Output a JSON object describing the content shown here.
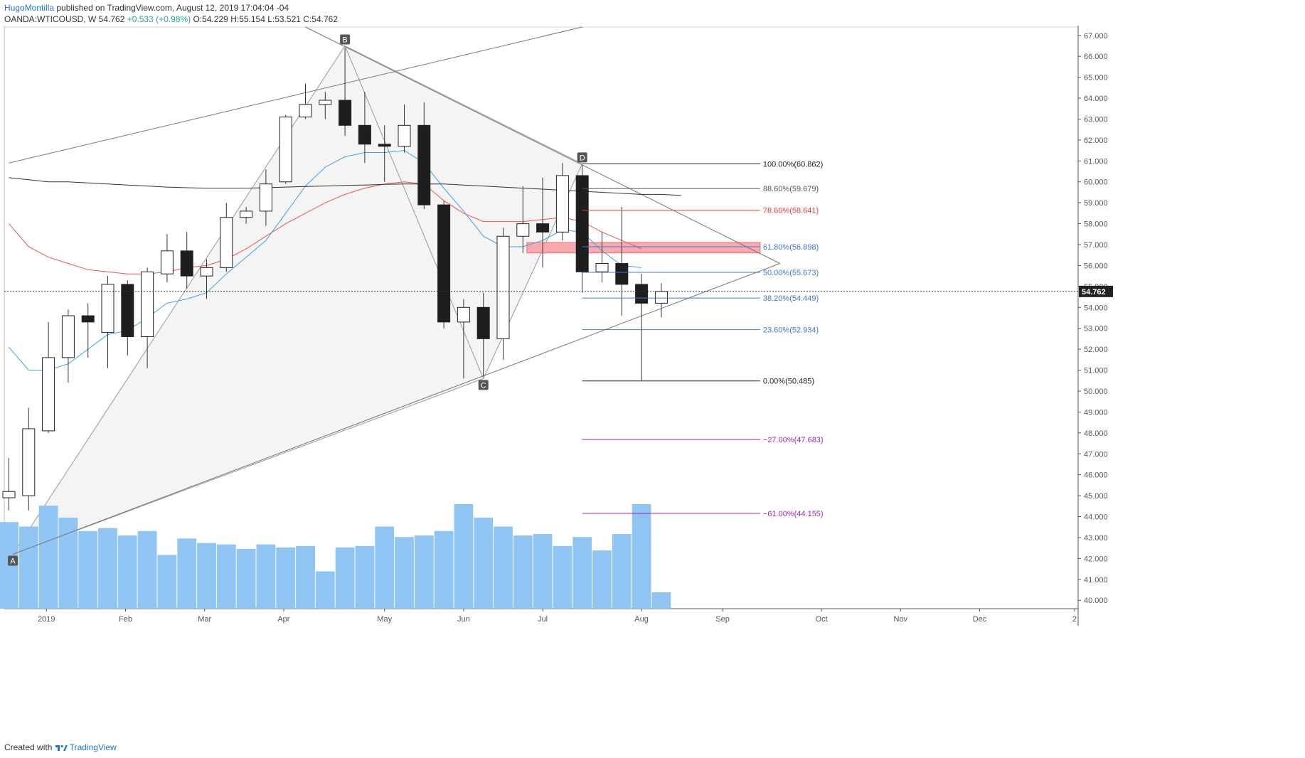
{
  "header": {
    "author": "HugoMontilla",
    "published_text": " published on TradingView.com, August 12, 2019 17:04:04 -04"
  },
  "symbol": {
    "name": "OANDA:WTICOUSD, W",
    "price": "54.762",
    "change": "+0.533 (+0.98%)",
    "open": "O:54.229",
    "high": "H:55.154",
    "low": "L:53.521",
    "close": "C:54.762"
  },
  "footer": {
    "created_with": "Created with",
    "brand": "TradingView"
  },
  "colors": {
    "bull_body": "#ffffff",
    "bear_body": "#1e1e1e",
    "wick": "#333333",
    "volume": "#90c4f3",
    "ma_blue": "#3da3e8",
    "ma_red": "#ef5350",
    "ma_black": "#333333",
    "fib_black": "#222222",
    "fib_gray": "#555555",
    "fib_red": "#e53935",
    "fib_blue": "#3c78d8",
    "fib_purple": "#9c27b0",
    "zone_fill": "#f7a1a6",
    "pattern_fill": "#f4f4f4"
  },
  "chart_data": {
    "type": "candlestick",
    "timeframe": "W",
    "ylim": [
      39.6,
      67.4
    ],
    "y_ticks": [
      "40.000",
      "41.000",
      "42.000",
      "43.000",
      "44.000",
      "45.000",
      "46.000",
      "47.000",
      "48.000",
      "49.000",
      "50.000",
      "51.000",
      "52.000",
      "53.000",
      "54.000",
      "55.000",
      "56.000",
      "57.000",
      "58.000",
      "59.000",
      "60.000",
      "61.000",
      "62.000",
      "63.000",
      "64.000",
      "65.000",
      "66.000",
      "67.000"
    ],
    "x_ticks": [
      {
        "label": "2019",
        "week": 1.9
      },
      {
        "label": "Feb",
        "week": 5.9
      },
      {
        "label": "Mar",
        "week": 9.9
      },
      {
        "label": "Apr",
        "week": 13.9
      },
      {
        "label": "May",
        "week": 19.0
      },
      {
        "label": "Jun",
        "week": 23.0
      },
      {
        "label": "Jul",
        "week": 27.0
      },
      {
        "label": "Aug",
        "week": 32.0
      },
      {
        "label": "Sep",
        "week": 36.1
      },
      {
        "label": "Oct",
        "week": 41.1
      },
      {
        "label": "Nov",
        "week": 45.1
      },
      {
        "label": "Dec",
        "week": 49.1
      },
      {
        "label": "2",
        "week": 53.9
      }
    ],
    "candles": [
      {
        "o": 44.9,
        "h": 46.8,
        "l": 44.3,
        "c": 45.2
      },
      {
        "o": 45.0,
        "h": 49.2,
        "l": 44.3,
        "c": 48.2
      },
      {
        "o": 48.1,
        "h": 53.3,
        "l": 48.0,
        "c": 51.6
      },
      {
        "o": 51.6,
        "h": 53.9,
        "l": 50.4,
        "c": 53.6
      },
      {
        "o": 53.6,
        "h": 54.2,
        "l": 51.6,
        "c": 53.3
      },
      {
        "o": 52.8,
        "h": 55.5,
        "l": 51.1,
        "c": 55.1
      },
      {
        "o": 55.1,
        "h": 55.3,
        "l": 51.7,
        "c": 52.6
      },
      {
        "o": 52.6,
        "h": 55.9,
        "l": 51.1,
        "c": 55.7
      },
      {
        "o": 55.6,
        "h": 57.5,
        "l": 55.2,
        "c": 56.7
      },
      {
        "o": 56.7,
        "h": 57.6,
        "l": 54.9,
        "c": 55.5
      },
      {
        "o": 55.5,
        "h": 56.3,
        "l": 54.4,
        "c": 55.9
      },
      {
        "o": 55.9,
        "h": 59.0,
        "l": 55.7,
        "c": 58.3
      },
      {
        "o": 58.3,
        "h": 58.8,
        "l": 58.0,
        "c": 58.6
      },
      {
        "o": 58.6,
        "h": 60.6,
        "l": 57.9,
        "c": 59.9
      },
      {
        "o": 60.0,
        "h": 63.2,
        "l": 59.9,
        "c": 63.1
      },
      {
        "o": 63.1,
        "h": 64.7,
        "l": 63.0,
        "c": 63.7
      },
      {
        "o": 63.7,
        "h": 64.3,
        "l": 63.0,
        "c": 63.9
      },
      {
        "o": 63.9,
        "h": 66.4,
        "l": 62.2,
        "c": 62.7
      },
      {
        "o": 62.7,
        "h": 64.3,
        "l": 60.9,
        "c": 61.8
      },
      {
        "o": 61.8,
        "h": 62.7,
        "l": 60.0,
        "c": 61.7
      },
      {
        "o": 61.7,
        "h": 63.7,
        "l": 61.4,
        "c": 62.7
      },
      {
        "o": 62.7,
        "h": 63.8,
        "l": 58.7,
        "c": 58.9
      },
      {
        "o": 58.9,
        "h": 59.1,
        "l": 53.0,
        "c": 53.3
      },
      {
        "o": 53.3,
        "h": 54.4,
        "l": 50.6,
        "c": 54.0
      },
      {
        "o": 54.0,
        "h": 54.7,
        "l": 50.7,
        "c": 52.5
      },
      {
        "o": 52.5,
        "h": 57.8,
        "l": 51.5,
        "c": 57.4
      },
      {
        "o": 57.4,
        "h": 59.8,
        "l": 56.6,
        "c": 58.0
      },
      {
        "o": 58.0,
        "h": 60.2,
        "l": 55.9,
        "c": 57.6
      },
      {
        "o": 57.6,
        "h": 60.9,
        "l": 57.2,
        "c": 60.3
      },
      {
        "o": 60.3,
        "h": 60.8,
        "l": 54.7,
        "c": 55.7
      },
      {
        "o": 55.7,
        "h": 57.6,
        "l": 55.2,
        "c": 56.1
      },
      {
        "o": 56.1,
        "h": 58.8,
        "l": 53.6,
        "c": 55.1
      },
      {
        "o": 55.1,
        "h": 55.6,
        "l": 50.5,
        "c": 54.2
      },
      {
        "o": 54.2,
        "h": 55.15,
        "l": 53.52,
        "c": 54.76
      }
    ],
    "volume": {
      "scale_max": 100,
      "values": [
        58,
        55,
        69,
        61,
        52,
        54,
        49,
        52,
        36,
        47,
        44,
        43,
        40,
        43,
        41,
        42,
        25,
        41,
        42,
        55,
        48,
        49,
        52,
        70,
        61,
        55,
        49,
        50,
        42,
        48,
        39,
        50,
        70,
        11
      ]
    },
    "moving_averages": [
      {
        "color_key": "ma_blue",
        "start_week": 0,
        "values": [
          52.1,
          51.0,
          51.0,
          51.3,
          52.0,
          52.7,
          52.9,
          53.5,
          54.2,
          54.4,
          54.7,
          55.6,
          56.4,
          57.2,
          58.5,
          59.8,
          60.7,
          61.2,
          61.4,
          61.4,
          61.5,
          60.9,
          59.7,
          58.6,
          57.4,
          56.9,
          56.9,
          57.2,
          57.7,
          57.6,
          56.7,
          56.0,
          55.9
        ]
      },
      {
        "color_key": "ma_red",
        "start_week": 0,
        "values": [
          58.0,
          56.9,
          56.4,
          56.1,
          55.8,
          55.7,
          55.6,
          55.6,
          55.7,
          55.9,
          56.0,
          56.3,
          56.8,
          57.4,
          58.0,
          58.5,
          59.0,
          59.4,
          59.7,
          59.9,
          60.0,
          59.9,
          59.1,
          58.5,
          58.1,
          58.1,
          58.1,
          58.2,
          58.3,
          58.1,
          57.6,
          57.2,
          56.8
        ]
      },
      {
        "color_key": "ma_black",
        "start_week": 0,
        "values": [
          60.2,
          60.1,
          60.0,
          60.0,
          59.95,
          59.9,
          59.85,
          59.8,
          59.75,
          59.72,
          59.7,
          59.7,
          59.7,
          59.72,
          59.75,
          59.78,
          59.8,
          59.83,
          59.85,
          59.88,
          59.9,
          59.9,
          59.9,
          59.85,
          59.8,
          59.75,
          59.7,
          59.65,
          59.6,
          59.55,
          59.5,
          59.45,
          59.4,
          59.4,
          59.35
        ]
      }
    ],
    "pattern": {
      "points": [
        {
          "label": "A",
          "week": 0.2,
          "price": 42.2
        },
        {
          "label": "B",
          "week": 17.0,
          "price": 66.5
        },
        {
          "label": "C",
          "week": 24.0,
          "price": 50.6
        },
        {
          "label": "D",
          "week": 29.0,
          "price": 60.86
        }
      ]
    },
    "trendlines": [
      {
        "from": {
          "week": 0,
          "price": 60.9
        },
        "to": {
          "week": 29.0,
          "price": 67.4
        }
      },
      {
        "from": {
          "week": 15.0,
          "price": 67.4
        },
        "to": {
          "week": 39.0,
          "price": 56.1
        }
      },
      {
        "from": {
          "week": 0.2,
          "price": 42.2
        },
        "to": {
          "week": 39.0,
          "price": 56.1
        }
      }
    ],
    "supply_zone": {
      "week_start": 26.2,
      "week_end": 38.0,
      "price_low": 56.6,
      "price_high": 57.1
    },
    "fib_levels": [
      {
        "label": "100.00%(60.862)",
        "price": 60.862,
        "color_key": "fib_black"
      },
      {
        "label": "88.60%(59.679)",
        "price": 59.679,
        "color_key": "fib_gray"
      },
      {
        "label": "78.60%(58.641)",
        "price": 58.641,
        "color_key": "fib_red"
      },
      {
        "label": "61.80%(56.898)",
        "price": 56.898,
        "color_key": "fib_blue"
      },
      {
        "label": "50.00%(55.673)",
        "price": 55.673,
        "color_key": "fib_blue"
      },
      {
        "label": "38.20%(54.449)",
        "price": 54.449,
        "color_key": "fib_blue"
      },
      {
        "label": "23.60%(52.934)",
        "price": 52.934,
        "color_key": "fib_blue"
      },
      {
        "label": "0.00%(50.485)",
        "price": 50.485,
        "color_key": "fib_black"
      },
      {
        "label": "−27.00%(47.683)",
        "price": 47.683,
        "color_key": "fib_purple"
      },
      {
        "label": "−61.00%(44.155)",
        "price": 44.155,
        "color_key": "fib_purple"
      }
    ],
    "fib_start_week": 29.0,
    "fib_end_week": 38.0,
    "last_price": {
      "price": 54.762,
      "label": "54.762"
    }
  }
}
